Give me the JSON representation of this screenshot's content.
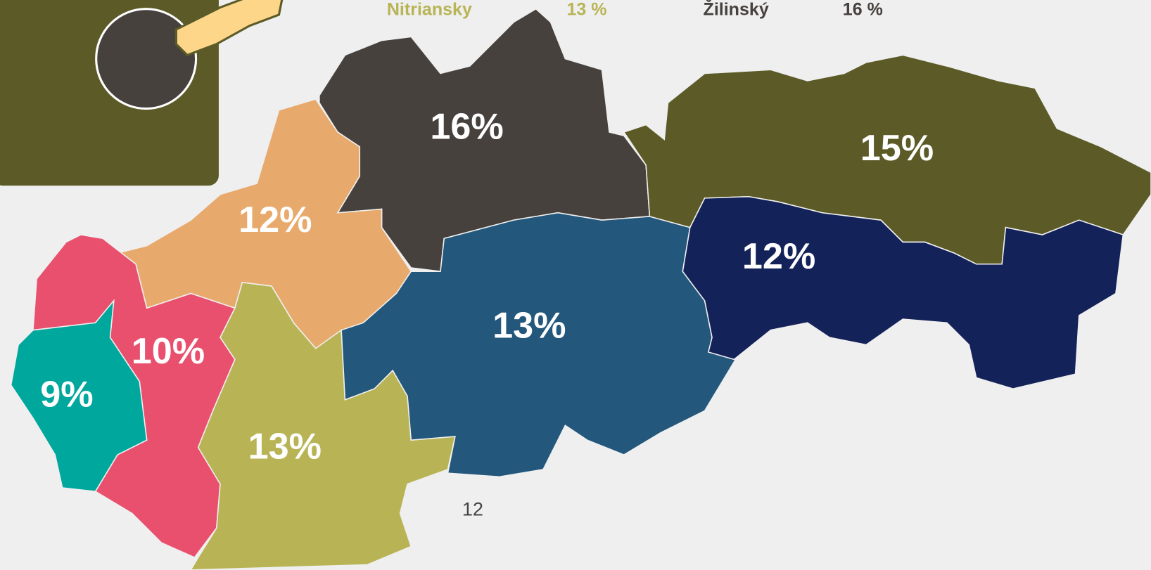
{
  "legend": [
    {
      "name": "Nitriansky",
      "value": "13 %"
    },
    {
      "name": "Žilinský",
      "value": "16 %"
    }
  ],
  "regions": [
    {
      "label": "16%"
    },
    {
      "label": "12%"
    },
    {
      "label": "10%"
    },
    {
      "label": "9%"
    },
    {
      "label": "13%"
    },
    {
      "label": "13%"
    },
    {
      "label": "15%"
    },
    {
      "label": "12%"
    }
  ],
  "page_number": "12"
}
